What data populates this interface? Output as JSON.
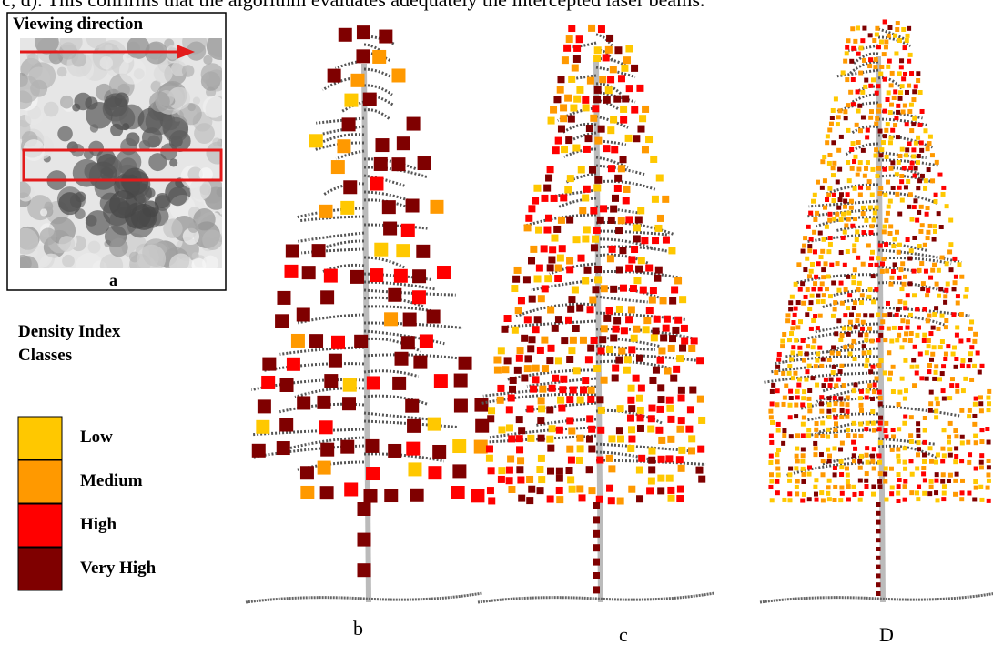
{
  "body_text": "c, d). This confirms that the algorithm evaluates adequately the intercepted laser beams.",
  "panel_a": {
    "header": "Viewing direction",
    "label": "a"
  },
  "legend": {
    "title": "Density Index Classes",
    "classes": [
      {
        "label": "Low",
        "color": "#ffc800"
      },
      {
        "label": "Medium",
        "color": "#ff9900"
      },
      {
        "label": "High",
        "color": "#ff0000"
      },
      {
        "label": "Very High",
        "color": "#7f0000"
      }
    ]
  },
  "panels": [
    {
      "label": "b"
    },
    {
      "label": "c"
    },
    {
      "label": "D"
    }
  ]
}
